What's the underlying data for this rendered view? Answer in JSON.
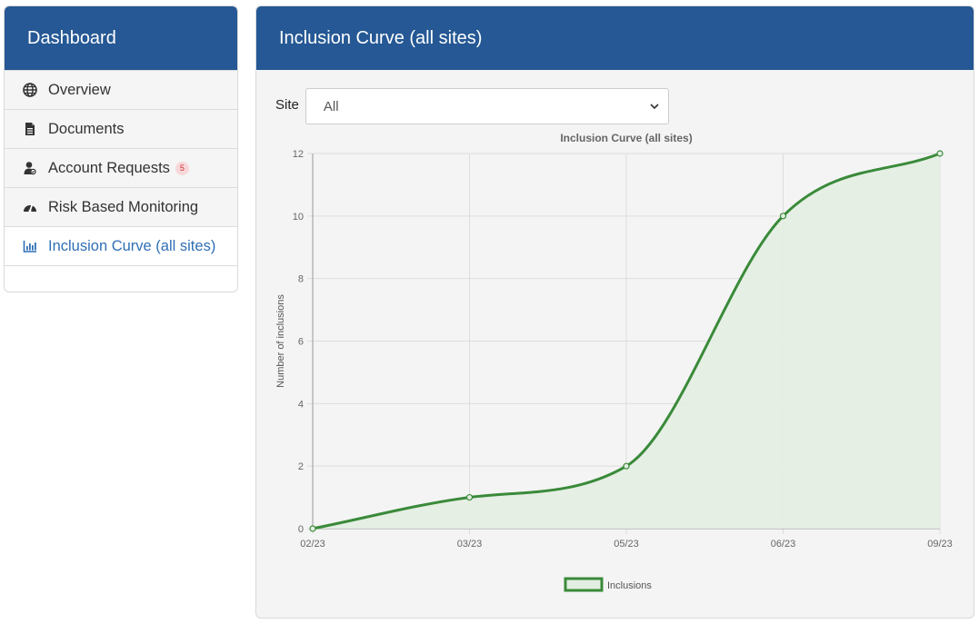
{
  "sidebar": {
    "title": "Dashboard",
    "items": [
      {
        "label": "Overview",
        "icon": "globe-icon"
      },
      {
        "label": "Documents",
        "icon": "file-icon"
      },
      {
        "label": "Account Requests",
        "icon": "user-request-icon",
        "badge": "5"
      },
      {
        "label": "Risk Based Monitoring",
        "icon": "gauge-icon"
      },
      {
        "label": "Inclusion Curve (all sites)",
        "icon": "bar-chart-icon",
        "active": true
      }
    ]
  },
  "panel": {
    "title": "Inclusion Curve (all sites)"
  },
  "filter": {
    "label": "Site",
    "selected": "All"
  },
  "chart_data": {
    "type": "line",
    "title": "Inclusion Curve (all sites)",
    "ylabel": "Number of inclusions",
    "xlabel": "",
    "x": [
      "02/23",
      "03/23",
      "05/23",
      "06/23",
      "09/23"
    ],
    "series": [
      {
        "name": "Inclusions",
        "values": [
          0,
          1,
          2,
          10,
          12
        ],
        "color": "#3a8a3a",
        "fill": "#e3eee2"
      }
    ],
    "ylim": [
      0,
      12
    ],
    "yticks": [
      0,
      2,
      4,
      6,
      8,
      10,
      12
    ],
    "grid": true,
    "legend": "bottom"
  }
}
